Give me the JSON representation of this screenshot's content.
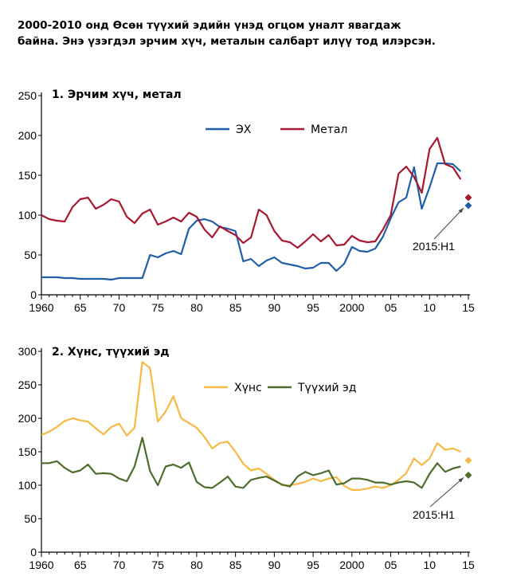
{
  "headline": {
    "line1": "2000-2010 онд Өсөн түүхий эдийн үнэд огцом уналт явагдаж",
    "line2": "байна.  Энэ үзэгдэл эрчим хүч, металын салбарт илүү тод илэрсэн."
  },
  "chart_data": [
    {
      "type": "line",
      "title": "1. Эрчим хүч, метал",
      "xlabel": "",
      "ylabel": "",
      "xlim": [
        1960,
        2015
      ],
      "ylim": [
        0,
        250
      ],
      "y_ticks": [
        0,
        50,
        100,
        150,
        200,
        250
      ],
      "x_tick_values": [
        1960,
        1965,
        1970,
        1975,
        1980,
        1985,
        1990,
        1995,
        2000,
        2005,
        2010,
        2015
      ],
      "x_tick_labels": [
        "1960",
        "65",
        "70",
        "75",
        "80",
        "85",
        "90",
        "95",
        "2000",
        "05",
        "10",
        "15"
      ],
      "legend": "top-center",
      "grid": false,
      "annotation": {
        "text": "2015:H1",
        "x": 2015.0,
        "y": 112
      },
      "series": [
        {
          "name": "ЭХ",
          "color": "#1f5fa8",
          "x": [
            1960,
            1961,
            1962,
            1963,
            1964,
            1965,
            1966,
            1967,
            1968,
            1969,
            1970,
            1971,
            1972,
            1973,
            1974,
            1975,
            1976,
            1977,
            1978,
            1979,
            1980,
            1981,
            1982,
            1983,
            1984,
            1985,
            1986,
            1987,
            1988,
            1989,
            1990,
            1991,
            1992,
            1993,
            1994,
            1995,
            1996,
            1997,
            1998,
            1999,
            2000,
            2001,
            2002,
            2003,
            2004,
            2005,
            2006,
            2007,
            2008,
            2009,
            2010,
            2011,
            2012,
            2013,
            2014
          ],
          "values": [
            22,
            22,
            22,
            21,
            21,
            20,
            20,
            20,
            20,
            19,
            21,
            21,
            21,
            21,
            50,
            47,
            52,
            55,
            51,
            83,
            93,
            95,
            92,
            85,
            83,
            80,
            42,
            45,
            36,
            43,
            47,
            40,
            38,
            36,
            33,
            34,
            40,
            40,
            30,
            39,
            60,
            55,
            54,
            58,
            73,
            96,
            116,
            122,
            160,
            108,
            135,
            165,
            165,
            164,
            155
          ],
          "endpoint": {
            "x": 2015.0,
            "value": 112
          }
        },
        {
          "name": "Метал",
          "color": "#a71930",
          "x": [
            1960,
            1961,
            1962,
            1963,
            1964,
            1965,
            1966,
            1967,
            1968,
            1969,
            1970,
            1971,
            1972,
            1973,
            1974,
            1975,
            1976,
            1977,
            1978,
            1979,
            1980,
            1981,
            1982,
            1983,
            1984,
            1985,
            1986,
            1987,
            1988,
            1989,
            1990,
            1991,
            1992,
            1993,
            1994,
            1995,
            1996,
            1997,
            1998,
            1999,
            2000,
            2001,
            2002,
            2003,
            2004,
            2005,
            2006,
            2007,
            2008,
            2009,
            2010,
            2011,
            2012,
            2013,
            2014
          ],
          "values": [
            100,
            95,
            93,
            92,
            110,
            120,
            122,
            108,
            113,
            120,
            117,
            98,
            90,
            102,
            107,
            88,
            92,
            97,
            92,
            103,
            98,
            82,
            72,
            86,
            80,
            75,
            65,
            72,
            107,
            100,
            80,
            68,
            66,
            59,
            67,
            76,
            67,
            75,
            62,
            63,
            74,
            68,
            66,
            67,
            82,
            100,
            152,
            161,
            148,
            128,
            183,
            197,
            164,
            160,
            145
          ],
          "endpoint": {
            "x": 2015.0,
            "value": 122
          }
        }
      ]
    },
    {
      "type": "line",
      "title": "2. Хүнс, түүхий эд",
      "xlabel": "",
      "ylabel": "",
      "xlim": [
        1960,
        2015
      ],
      "ylim": [
        0,
        300
      ],
      "y_ticks": [
        0,
        50,
        100,
        150,
        200,
        250,
        300
      ],
      "x_tick_values": [
        1960,
        1965,
        1970,
        1975,
        1980,
        1985,
        1990,
        1995,
        2000,
        2005,
        2010,
        2015
      ],
      "x_tick_labels": [
        "1960",
        "65",
        "70",
        "75",
        "80",
        "85",
        "90",
        "95",
        "2000",
        "05",
        "10",
        "15"
      ],
      "legend": "top-right",
      "grid": false,
      "annotation": {
        "text": "2015:H1",
        "x": 2015.0,
        "y": 115
      },
      "series": [
        {
          "name": "Хүнс",
          "color": "#f6b944",
          "x": [
            1960,
            1961,
            1962,
            1963,
            1964,
            1965,
            1966,
            1967,
            1968,
            1969,
            1970,
            1971,
            1972,
            1973,
            1974,
            1975,
            1976,
            1977,
            1978,
            1979,
            1980,
            1981,
            1982,
            1983,
            1984,
            1985,
            1986,
            1987,
            1988,
            1989,
            1990,
            1991,
            1992,
            1993,
            1994,
            1995,
            1996,
            1997,
            1998,
            1999,
            2000,
            2001,
            2002,
            2003,
            2004,
            2005,
            2006,
            2007,
            2008,
            2009,
            2010,
            2011,
            2012,
            2013,
            2014
          ],
          "values": [
            175,
            180,
            187,
            196,
            200,
            197,
            195,
            185,
            176,
            187,
            192,
            174,
            186,
            284,
            275,
            195,
            210,
            233,
            200,
            193,
            186,
            172,
            155,
            163,
            165,
            150,
            132,
            122,
            125,
            117,
            108,
            100,
            100,
            102,
            105,
            110,
            106,
            110,
            112,
            99,
            93,
            93,
            95,
            98,
            96,
            100,
            108,
            118,
            140,
            130,
            140,
            163,
            153,
            155,
            150
          ],
          "endpoint": {
            "x": 2015.0,
            "value": 137
          }
        },
        {
          "name": "Түүхий эд",
          "color": "#4d6d2d",
          "x": [
            1960,
            1961,
            1962,
            1963,
            1964,
            1965,
            1966,
            1967,
            1968,
            1969,
            1970,
            1971,
            1972,
            1973,
            1974,
            1975,
            1976,
            1977,
            1978,
            1979,
            1980,
            1981,
            1982,
            1983,
            1984,
            1985,
            1986,
            1987,
            1988,
            1989,
            1990,
            1991,
            1992,
            1993,
            1994,
            1995,
            1996,
            1997,
            1998,
            1999,
            2000,
            2001,
            2002,
            2003,
            2004,
            2005,
            2006,
            2007,
            2008,
            2009,
            2010,
            2011,
            2012,
            2013,
            2014
          ],
          "values": [
            133,
            133,
            136,
            126,
            119,
            122,
            131,
            117,
            118,
            117,
            110,
            106,
            128,
            171,
            121,
            100,
            128,
            131,
            126,
            134,
            105,
            97,
            96,
            104,
            113,
            98,
            96,
            108,
            111,
            113,
            107,
            101,
            98,
            113,
            120,
            115,
            118,
            122,
            101,
            103,
            110,
            110,
            108,
            104,
            104,
            101,
            104,
            106,
            104,
            96,
            117,
            133,
            120,
            125,
            128
          ],
          "endpoint": {
            "x": 2015.0,
            "value": 115
          }
        }
      ]
    }
  ]
}
